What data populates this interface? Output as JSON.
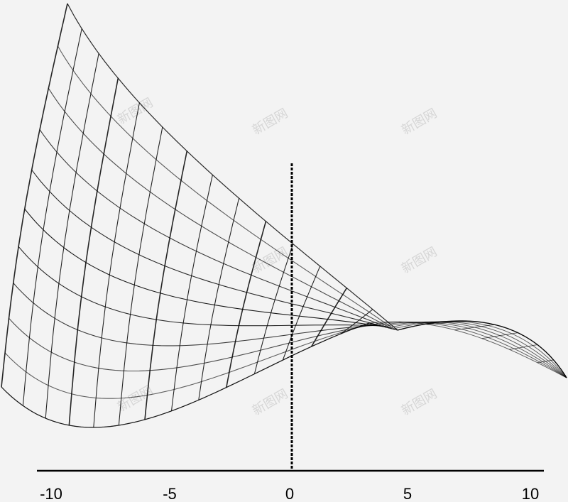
{
  "axis": {
    "x_tick_labels": [
      "-10",
      "-5",
      "0",
      "5",
      "10"
    ]
  },
  "watermark": {
    "text": "新图网"
  },
  "colors": {
    "background": "#f3f3f3",
    "stroke": "#000000"
  }
}
